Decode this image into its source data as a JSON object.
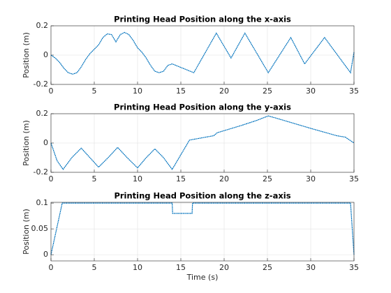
{
  "chart_data": [
    {
      "type": "line",
      "title": "Printing Head Position along the x-axis",
      "ylabel": "Position (m)",
      "x": [
        0,
        0.5,
        1,
        1.5,
        2,
        2.5,
        3,
        3.5,
        4,
        4.5,
        5,
        5.5,
        6,
        6.5,
        7,
        7.5,
        8,
        8.5,
        9,
        9.5,
        10,
        10.5,
        11,
        11.5,
        12,
        12.5,
        13,
        13.5,
        14,
        16.5,
        19.1,
        20.8,
        22.4,
        25.1,
        27.7,
        29.3,
        31.6,
        34.6,
        35
      ],
      "values": [
        0,
        -0.02,
        -0.05,
        -0.09,
        -0.12,
        -0.13,
        -0.12,
        -0.08,
        -0.03,
        0.01,
        0.04,
        0.07,
        0.12,
        0.145,
        0.14,
        0.09,
        0.14,
        0.155,
        0.14,
        0.1,
        0.05,
        0.02,
        -0.02,
        -0.07,
        -0.11,
        -0.12,
        -0.11,
        -0.07,
        -0.06,
        -0.12,
        0.15,
        -0.02,
        0.15,
        -0.12,
        0.12,
        -0.06,
        0.12,
        -0.12,
        0.02
      ],
      "color": "#0072bd",
      "xlim": [
        0,
        35
      ],
      "ylim": [
        -0.2,
        0.2
      ],
      "xticks": [
        0,
        5,
        10,
        15,
        20,
        25,
        30,
        35
      ],
      "yticks": [
        -0.2,
        0,
        0.2
      ],
      "grid": true
    },
    {
      "type": "line",
      "title": "Printing Head Position along the y-axis",
      "ylabel": "Position (m)",
      "x": [
        0,
        0.7,
        1.4,
        2.4,
        3.5,
        4.5,
        5.5,
        6.6,
        7.7,
        8.8,
        10,
        11,
        12,
        13,
        14,
        16,
        18.8,
        19.2,
        22,
        23.8,
        25.1,
        26,
        30,
        33,
        34,
        35
      ],
      "values": [
        0,
        -0.12,
        -0.18,
        -0.1,
        -0.035,
        -0.1,
        -0.165,
        -0.1,
        -0.03,
        -0.1,
        -0.17,
        -0.1,
        -0.04,
        -0.1,
        -0.18,
        0.02,
        0.05,
        0.07,
        0.12,
        0.155,
        0.185,
        0.17,
        0.1,
        0.05,
        0.04,
        0
      ],
      "color": "#0072bd",
      "xlim": [
        0,
        35
      ],
      "ylim": [
        -0.2,
        0.2
      ],
      "xticks": [
        0,
        5,
        10,
        15,
        20,
        25,
        30,
        35
      ],
      "yticks": [
        -0.2,
        0,
        0.2
      ],
      "grid": true
    },
    {
      "type": "line",
      "title": "Printing Head Position along the z-axis",
      "ylabel": "Position (m)",
      "xlabel": "Time (s)",
      "x": [
        0,
        1.3,
        14,
        14.05,
        16.3,
        16.35,
        34.6,
        35
      ],
      "values": [
        0,
        0.1,
        0.1,
        0.08,
        0.08,
        0.1,
        0.1,
        0
      ],
      "color": "#0072bd",
      "xlim": [
        0,
        35
      ],
      "ylim": [
        -0.012,
        0.1015
      ],
      "xticks": [
        0,
        5,
        10,
        15,
        20,
        25,
        30,
        35
      ],
      "yticks": [
        0,
        0.05,
        0.1
      ],
      "grid": true
    }
  ]
}
